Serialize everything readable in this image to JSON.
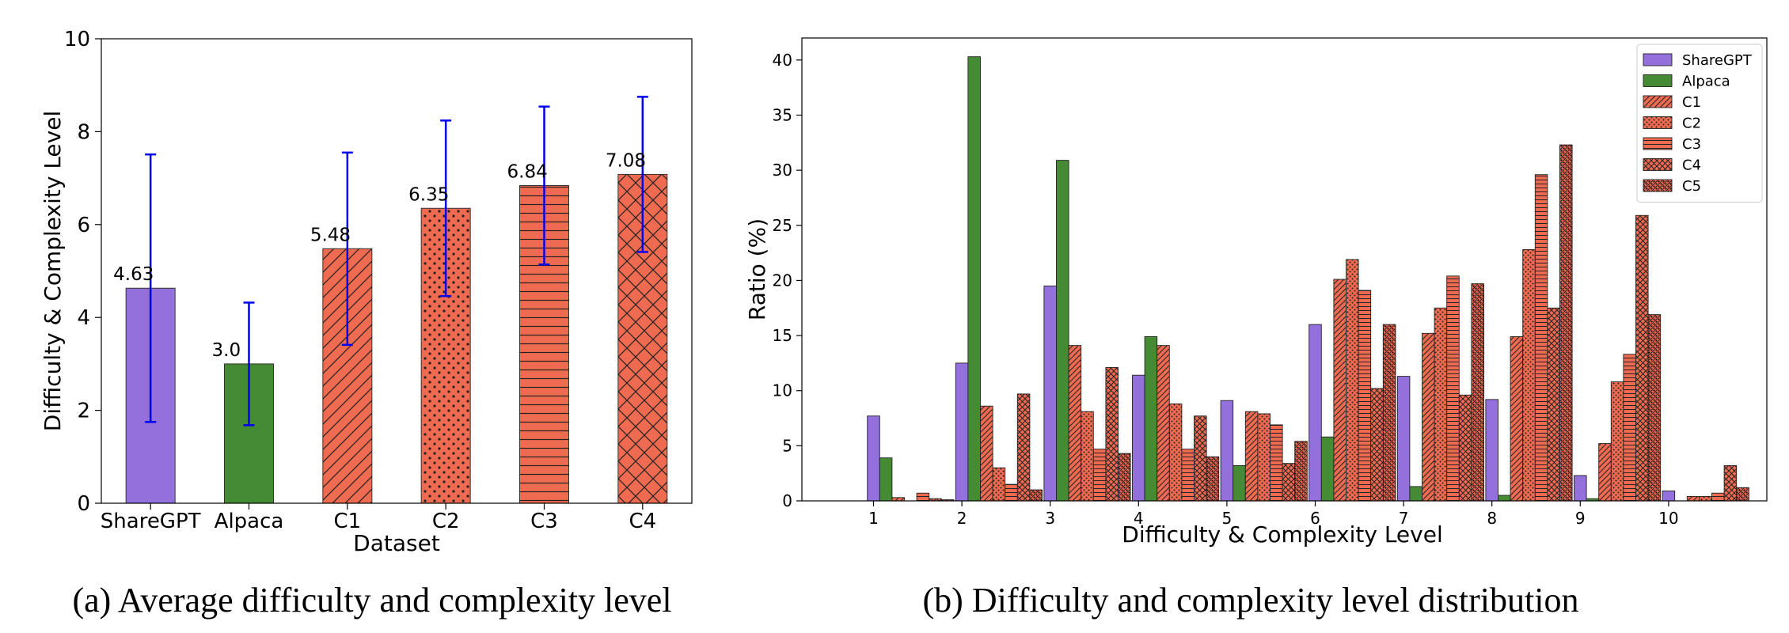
{
  "chart_data": [
    {
      "type": "bar",
      "caption": "(a) Average difficulty and complexity level",
      "xlabel": "Dataset",
      "ylabel": "Difficulty & Complexity Level",
      "ylim": [
        0,
        10
      ],
      "yticks": [
        "0",
        "2",
        "4",
        "6",
        "8",
        "10"
      ],
      "categories": [
        "ShareGPT",
        "Alpaca",
        "C1",
        "C2",
        "C3",
        "C4"
      ],
      "values": [
        4.63,
        3.0,
        5.48,
        6.35,
        6.84,
        7.08
      ],
      "value_labels": [
        "4.63",
        "3.0",
        "5.48",
        "6.35",
        "6.84",
        "7.08"
      ],
      "errors": [
        2.88,
        1.32,
        2.07,
        1.89,
        1.7,
        1.67
      ],
      "colors": [
        "#9370DB",
        "#458B34",
        "#EE6A50",
        "#EE6A50",
        "#EE6A50",
        "#EE6A50"
      ],
      "hatches": [
        "none",
        "none",
        "diag",
        "dots",
        "horiz",
        "cross"
      ],
      "error_color": "#0000EE"
    },
    {
      "type": "bar",
      "caption": "(b) Difficulty and complexity level distribution",
      "xlabel": "Difficulty & Complexity Level",
      "ylabel": "Ratio (%)",
      "ylim": [
        0,
        42
      ],
      "yticks": [
        "0",
        "5",
        "10",
        "15",
        "20",
        "25",
        "30",
        "35",
        "40"
      ],
      "categories": [
        "1",
        "2",
        "3",
        "4",
        "5",
        "6",
        "7",
        "8",
        "9",
        "10"
      ],
      "legend_position": "top-right",
      "series": [
        {
          "name": "ShareGPT",
          "color": "#9370DB",
          "hatch": "none",
          "values": [
            7.7,
            12.5,
            19.5,
            11.4,
            9.1,
            16.0,
            11.3,
            9.2,
            2.3,
            0.9
          ]
        },
        {
          "name": "Alpaca",
          "color": "#458B34",
          "hatch": "none",
          "values": [
            3.9,
            40.3,
            30.9,
            14.9,
            3.2,
            5.8,
            1.3,
            0.5,
            0.2,
            0.0
          ]
        },
        {
          "name": "C1",
          "color": "#EE6A50",
          "hatch": "diag",
          "values": [
            0.3,
            8.6,
            14.1,
            14.1,
            8.1,
            20.1,
            15.2,
            14.9,
            5.2,
            0.4
          ]
        },
        {
          "name": "C2",
          "color": "#EE6A50",
          "hatch": "dots",
          "values": [
            0.0,
            3.0,
            8.1,
            8.8,
            7.9,
            21.9,
            17.5,
            22.8,
            10.8,
            0.4
          ]
        },
        {
          "name": "C3",
          "color": "#EE6A50",
          "hatch": "horiz",
          "values": [
            0.7,
            1.5,
            4.7,
            4.7,
            6.9,
            19.1,
            20.4,
            29.6,
            13.3,
            0.7
          ]
        },
        {
          "name": "C4",
          "color": "#EE6A50",
          "hatch": "cross",
          "values": [
            0.2,
            9.7,
            12.1,
            7.7,
            3.4,
            10.2,
            9.6,
            17.5,
            25.9,
            3.2
          ]
        },
        {
          "name": "C5",
          "color": "#EE6A50",
          "hatch": "dense",
          "values": [
            0.1,
            1.0,
            4.3,
            4.0,
            5.4,
            16.0,
            19.7,
            32.3,
            16.9,
            1.2
          ]
        }
      ]
    }
  ]
}
